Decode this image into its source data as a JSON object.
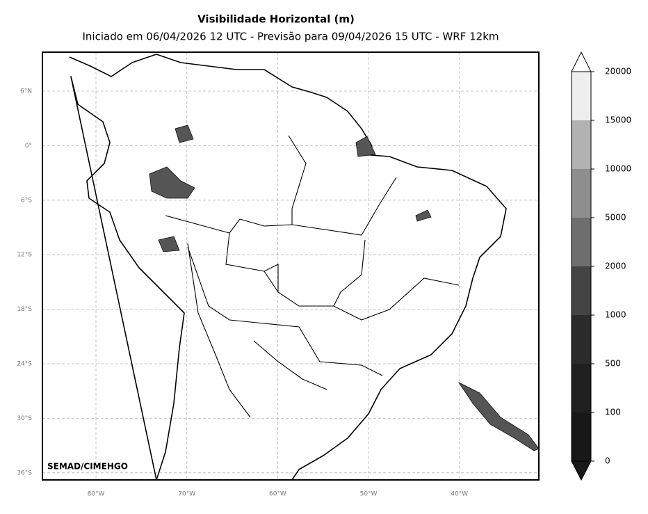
{
  "header": {
    "title": "Visibilidade Horizontal (m)",
    "subtitle": "Iniciado em 06/04/2026 12 UTC - Previsão para 09/04/2026 15 UTC - WRF 12km"
  },
  "map": {
    "lat_labels": [
      "6°N",
      "0°",
      "6°S",
      "12°S",
      "18°S",
      "24°S",
      "30°S",
      "36°S"
    ],
    "lon_labels": [
      "80°W",
      "70°W",
      "60°W",
      "50°W",
      "40°W"
    ],
    "credit": "SEMAD/CIMEHGO"
  },
  "colorbar": {
    "levels": [
      0,
      100,
      500,
      1000,
      2000,
      5000,
      10000,
      15000,
      20000
    ],
    "colors": [
      "#181818",
      "#202020",
      "#2b2b2b",
      "#444444",
      "#6e6e6e",
      "#8e8e8e",
      "#b2b2b2",
      "#eeeeee"
    ]
  }
}
